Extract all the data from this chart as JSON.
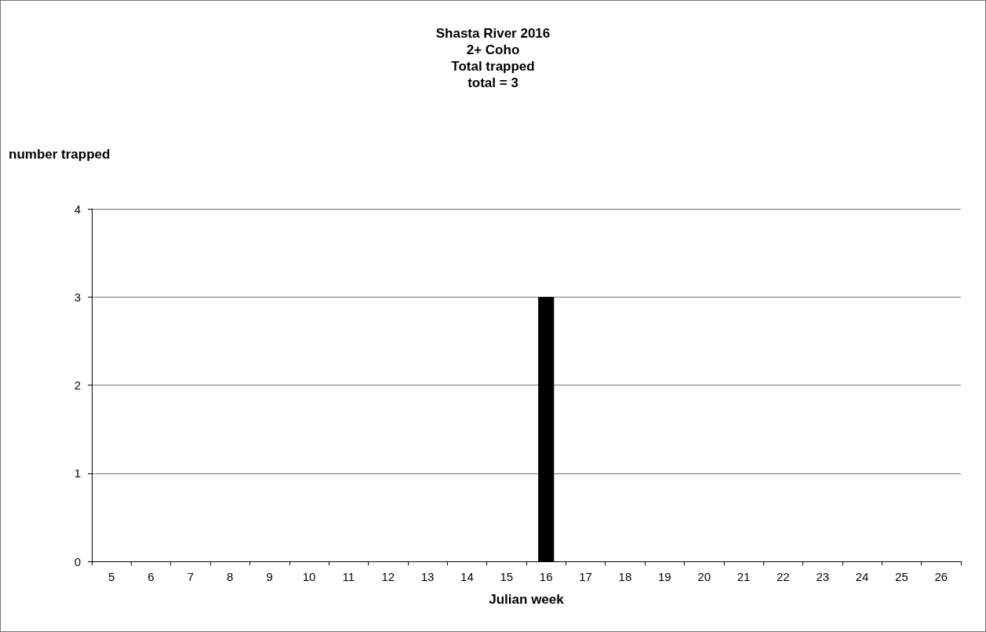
{
  "chart_data": {
    "type": "bar",
    "title": "Shasta River 2016\n2+ Coho\nTotal trapped\ntotal = 3",
    "xlabel": "Julian week",
    "ylabel": "number trapped",
    "categories": [
      "5",
      "6",
      "7",
      "8",
      "9",
      "10",
      "11",
      "12",
      "13",
      "14",
      "15",
      "16",
      "17",
      "18",
      "19",
      "20",
      "21",
      "22",
      "23",
      "24",
      "25",
      "26"
    ],
    "values": [
      0,
      0,
      0,
      0,
      0,
      0,
      0,
      0,
      0,
      0,
      0,
      3,
      0,
      0,
      0,
      0,
      0,
      0,
      0,
      0,
      0,
      0
    ],
    "color": "#000000",
    "ylim": [
      0,
      4
    ],
    "yticks": [
      0,
      1,
      2,
      3,
      4
    ],
    "grid": "y"
  }
}
